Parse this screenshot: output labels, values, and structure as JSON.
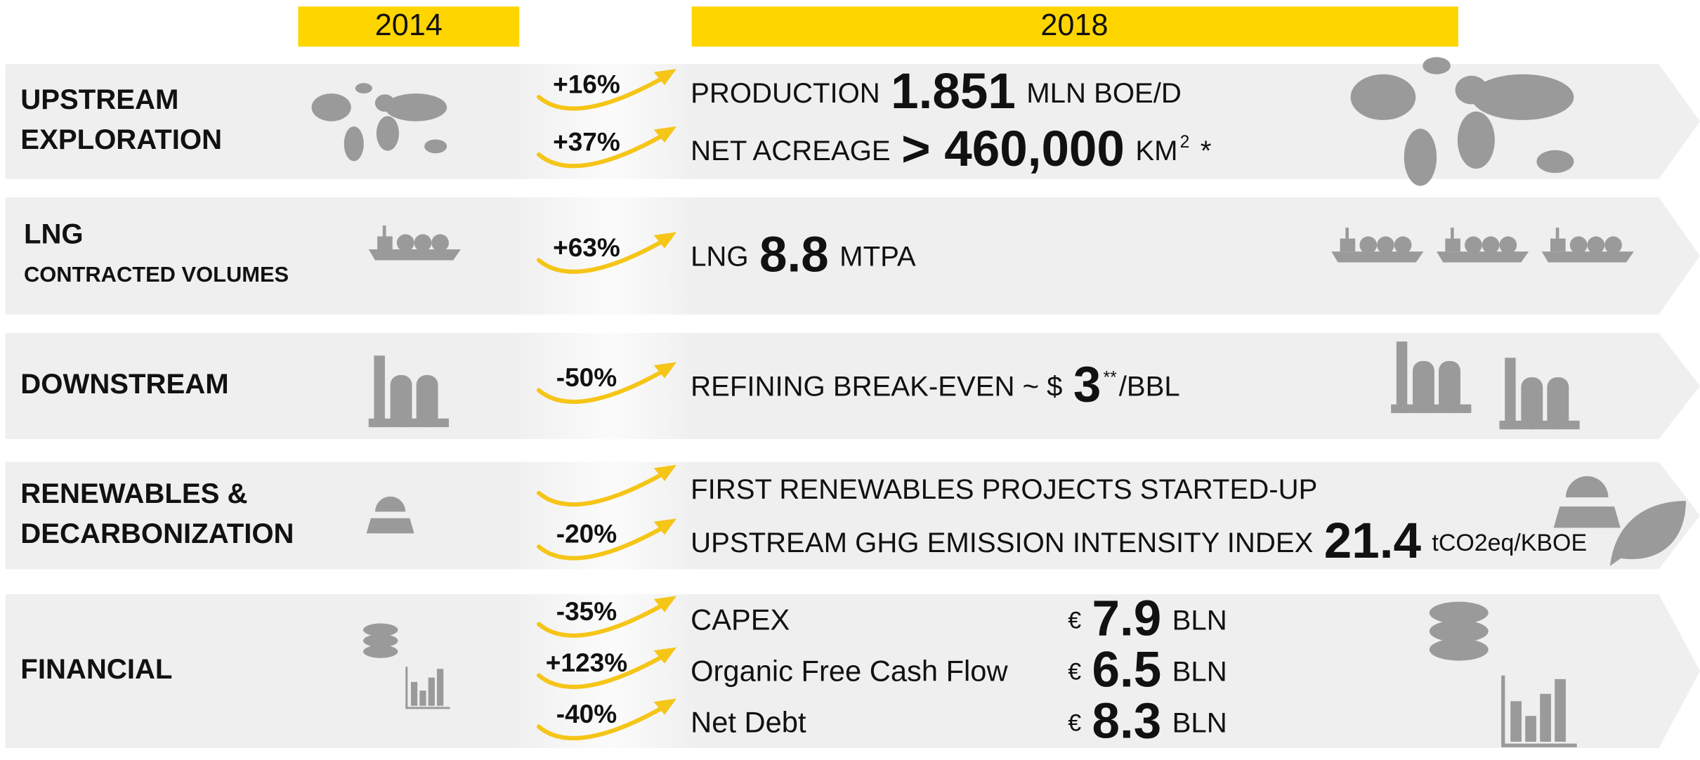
{
  "header": {
    "year_before": "2014",
    "year_after": "2018"
  },
  "rows": [
    {
      "label": [
        "UPSTREAM",
        "EXPLORATION"
      ],
      "icon": "world",
      "metrics": [
        {
          "change": "+16%",
          "parts": [
            {
              "text": "PRODUCTION"
            },
            {
              "text": "1.851",
              "kind": "big"
            },
            {
              "text": "MLN BOE/D"
            }
          ]
        },
        {
          "change": "+37%",
          "parts": [
            {
              "text": "NET ACREAGE"
            },
            {
              "text": "> 460,000",
              "kind": "big"
            },
            {
              "text": "KM"
            },
            {
              "text": "2",
              "kind": "sup"
            },
            {
              "text": "*"
            }
          ]
        }
      ]
    },
    {
      "label": [
        "LNG",
        "CONTRACTED VOLUMES"
      ],
      "icon": "ship",
      "metrics": [
        {
          "change": "+63%",
          "parts": [
            {
              "text": "LNG"
            },
            {
              "text": "8.8",
              "kind": "big"
            },
            {
              "text": "MTPA"
            }
          ]
        }
      ]
    },
    {
      "label": [
        "DOWNSTREAM"
      ],
      "icon": "factory",
      "metrics": [
        {
          "change": "-50%",
          "parts": [
            {
              "text": "REFINING BREAK-EVEN ~ $"
            },
            {
              "text": "3",
              "kind": "big"
            },
            {
              "text": "**",
              "kind": "sup"
            },
            {
              "text": "/BBL"
            }
          ]
        }
      ]
    },
    {
      "label": [
        "RENEWABLES &",
        "DECARBONIZATION"
      ],
      "icon": "sun",
      "metrics": [
        {
          "parts": [
            {
              "text": "FIRST RENEWABLES PROJECTS STARTED-UP"
            }
          ]
        },
        {
          "change": "-20%",
          "parts": [
            {
              "text": "UPSTREAM GHG EMISSION INTENSITY INDEX"
            },
            {
              "text": "21.4",
              "kind": "big"
            },
            {
              "text": "tCO2eq/KBOE",
              "kind": "small"
            }
          ]
        }
      ]
    },
    {
      "label": [
        "FINANCIAL"
      ],
      "icon": "finance",
      "metrics": [
        {
          "change": "-35%",
          "name": "CAPEX",
          "parts": [
            {
              "text": "€"
            },
            {
              "text": "7.9",
              "kind": "big"
            },
            {
              "text": "BLN"
            }
          ]
        },
        {
          "change": "+123%",
          "name": "Organic Free Cash Flow",
          "parts": [
            {
              "text": "€"
            },
            {
              "text": "6.5",
              "kind": "big"
            },
            {
              "text": "BLN"
            }
          ]
        },
        {
          "change": "-40%",
          "name": "Net Debt",
          "parts": [
            {
              "text": "€"
            },
            {
              "text": "8.3",
              "kind": "big"
            },
            {
              "text": "BLN"
            }
          ]
        }
      ]
    }
  ]
}
